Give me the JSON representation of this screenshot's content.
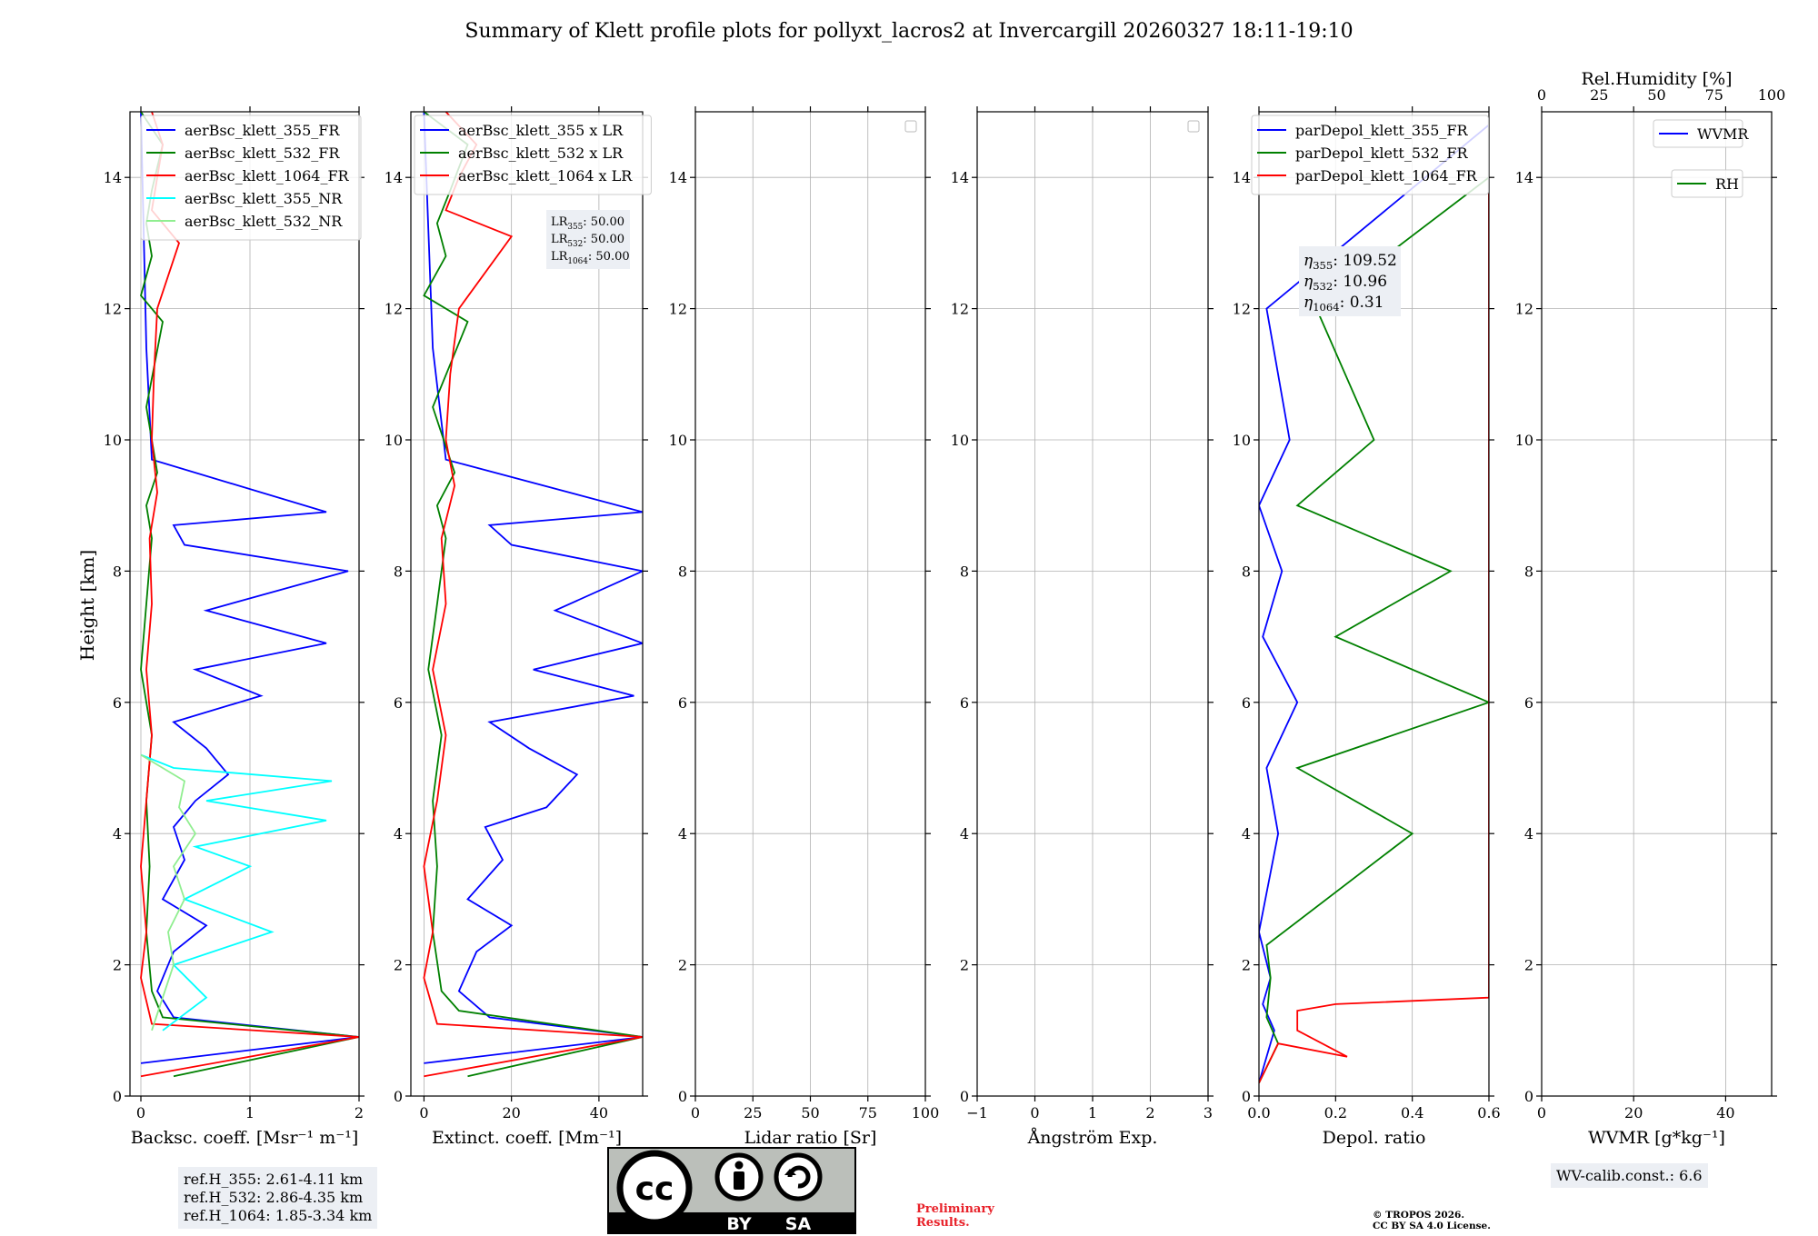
{
  "title": "Summary of Klett profile plots for pollyxt_lacros2 at Invercargill 20260327 18:11-19:10",
  "ylabel": "Height [km]",
  "colors": {
    "c355": "#0000ff",
    "c532": "#008000",
    "c1064": "#ff0000",
    "c355nr": "#00ffff",
    "c532nr": "#90ee90"
  },
  "chart_data": [
    {
      "type": "line",
      "panel": "backscatter",
      "xlabel": "Backsc. coeff. [Msr⁻¹ m⁻¹]",
      "xlim": [
        -0.1,
        2
      ],
      "ylim": [
        0,
        15
      ],
      "xticks": [
        "0",
        "1",
        "2"
      ],
      "yticks": [
        "0",
        "2",
        "4",
        "6",
        "8",
        "10",
        "12",
        "14"
      ],
      "legend": [
        "aerBsc_klett_355_FR",
        "aerBsc_klett_532_FR",
        "aerBsc_klett_1064_FR",
        "aerBsc_klett_355_NR",
        "aerBsc_klett_532_NR"
      ],
      "series": [
        {
          "name": "aerBsc_klett_355_FR",
          "x": [
            0.0,
            2.0,
            0.3,
            0.15,
            0.3,
            0.6,
            0.2,
            0.4,
            0.3,
            0.5,
            0.8,
            0.6,
            0.3,
            1.1,
            0.5,
            1.7,
            0.6,
            1.9,
            0.4,
            0.3,
            1.7,
            0.1,
            0.05,
            0.0
          ],
          "y": [
            0.5,
            0.9,
            1.2,
            1.6,
            2.2,
            2.6,
            3.0,
            3.6,
            4.1,
            4.5,
            4.9,
            5.3,
            5.7,
            6.1,
            6.5,
            6.9,
            7.4,
            8.0,
            8.4,
            8.7,
            8.9,
            9.7,
            11.4,
            15.0
          ]
        },
        {
          "name": "aerBsc_klett_532_FR",
          "x": [
            0.3,
            2.0,
            0.2,
            0.1,
            0.05,
            0.08,
            0.05,
            0.1,
            0.0,
            0.05,
            0.1,
            0.05,
            0.15,
            0.05,
            0.2,
            0.0,
            0.1,
            0.05,
            0.1,
            0.2,
            0.0
          ],
          "y": [
            0.3,
            0.9,
            1.2,
            1.6,
            2.5,
            3.5,
            4.5,
            5.5,
            6.5,
            7.5,
            8.5,
            9.0,
            9.5,
            10.5,
            11.8,
            12.2,
            12.8,
            13.3,
            13.8,
            14.5,
            15.0
          ]
        },
        {
          "name": "aerBsc_klett_1064_FR",
          "x": [
            0.0,
            2.0,
            0.1,
            0.0,
            0.05,
            0.0,
            0.05,
            0.1,
            0.05,
            0.1,
            0.08,
            0.15,
            0.1,
            0.12,
            0.15,
            0.35,
            0.1,
            0.15,
            0.2,
            0.1
          ],
          "y": [
            0.3,
            0.9,
            1.1,
            1.8,
            2.5,
            3.5,
            4.5,
            5.5,
            6.5,
            7.5,
            8.5,
            9.2,
            10.0,
            11.0,
            12.0,
            13.0,
            13.5,
            14.0,
            14.5,
            15.0
          ]
        },
        {
          "name": "aerBsc_klett_355_NR",
          "x": [
            0.2,
            0.6,
            0.3,
            1.2,
            0.4,
            1.0,
            0.5,
            1.7,
            0.6,
            1.75,
            0.3,
            0.0
          ],
          "y": [
            1.0,
            1.5,
            2.0,
            2.5,
            3.0,
            3.5,
            3.8,
            4.2,
            4.5,
            4.8,
            5.0,
            5.2
          ]
        },
        {
          "name": "aerBsc_klett_532_NR",
          "x": [
            0.1,
            0.2,
            0.3,
            0.25,
            0.4,
            0.3,
            0.5,
            0.35,
            0.4,
            0.2,
            0.0
          ],
          "y": [
            1.0,
            1.5,
            2.0,
            2.5,
            3.0,
            3.5,
            4.0,
            4.4,
            4.8,
            5.0,
            5.2
          ]
        }
      ],
      "ref_text": [
        "ref.H_355: 2.61-4.11 km",
        "ref.H_532: 2.86-4.35 km",
        "ref.H_1064: 1.85-3.34 km"
      ]
    },
    {
      "type": "line",
      "panel": "extinction",
      "xlabel": "Extinct. coeff. [Mm⁻¹]",
      "xlim": [
        -3,
        50
      ],
      "ylim": [
        0,
        15
      ],
      "xticks": [
        "0",
        "20",
        "40"
      ],
      "yticks": [
        "0",
        "2",
        "4",
        "6",
        "8",
        "10",
        "12",
        "14"
      ],
      "legend": [
        "aerBsc_klett_355 x LR",
        "aerBsc_klett_532 x LR",
        "aerBsc_klett_1064 x LR"
      ],
      "lr_text": [
        {
          "ch": "355",
          "val": ": 50.00"
        },
        {
          "ch": "532",
          "val": ": 50.00"
        },
        {
          "ch": "1064",
          "val": ": 50.00"
        }
      ],
      "series": [
        {
          "name": "aerBsc_klett_355 x LR",
          "x": [
            0,
            50,
            15,
            8,
            12,
            20,
            10,
            18,
            14,
            28,
            35,
            24,
            15,
            48,
            25,
            50,
            30,
            50,
            20,
            15,
            50,
            5,
            2,
            0
          ],
          "y": [
            0.5,
            0.9,
            1.2,
            1.6,
            2.2,
            2.6,
            3.0,
            3.6,
            4.1,
            4.4,
            4.9,
            5.3,
            5.7,
            6.1,
            6.5,
            6.9,
            7.4,
            8.0,
            8.4,
            8.7,
            8.9,
            9.7,
            11.4,
            15.0
          ]
        },
        {
          "name": "aerBsc_klett_532 x LR",
          "x": [
            10,
            50,
            8,
            4,
            2,
            3,
            2,
            4,
            1,
            3,
            5,
            3,
            7,
            2,
            10,
            0,
            5,
            3,
            6,
            10,
            0
          ],
          "y": [
            0.3,
            0.9,
            1.3,
            1.6,
            2.5,
            3.5,
            4.5,
            5.5,
            6.5,
            7.5,
            8.5,
            9.0,
            9.5,
            10.5,
            11.8,
            12.2,
            12.8,
            13.3,
            13.8,
            14.5,
            15.0
          ]
        },
        {
          "name": "aerBsc_klett_1064 x LR",
          "x": [
            0,
            50,
            3,
            0,
            2,
            0,
            3,
            5,
            2,
            5,
            4,
            7,
            5,
            6,
            8,
            20,
            5,
            8,
            12,
            5
          ],
          "y": [
            0.3,
            0.9,
            1.1,
            1.8,
            2.5,
            3.5,
            4.5,
            5.5,
            6.5,
            7.5,
            8.5,
            9.3,
            10.0,
            11.0,
            12.0,
            13.1,
            13.5,
            14.0,
            14.5,
            15.0
          ]
        }
      ]
    },
    {
      "type": "line",
      "panel": "lidar-ratio",
      "xlabel": "Lidar ratio [Sr]",
      "xlim": [
        0,
        100
      ],
      "ylim": [
        0,
        15
      ],
      "xticks": [
        "0",
        "25",
        "50",
        "75",
        "100"
      ],
      "yticks": [
        "0",
        "2",
        "4",
        "6",
        "8",
        "10",
        "12",
        "14"
      ],
      "series": []
    },
    {
      "type": "line",
      "panel": "angstrom",
      "xlabel": "Ångström Exp.",
      "xlim": [
        -1,
        3
      ],
      "ylim": [
        0,
        15
      ],
      "xticks": [
        "−1",
        "0",
        "1",
        "2",
        "3"
      ],
      "yticks": [
        "0",
        "2",
        "4",
        "6",
        "8",
        "10",
        "12",
        "14"
      ],
      "series": []
    },
    {
      "type": "line",
      "panel": "depolarization",
      "xlabel": "Depol. ratio",
      "xlim": [
        0,
        0.6
      ],
      "ylim": [
        0,
        15
      ],
      "xticks": [
        "0.0",
        "0.2",
        "0.4",
        "0.6"
      ],
      "yticks": [
        "0",
        "2",
        "4",
        "6",
        "8",
        "10",
        "12",
        "14"
      ],
      "legend": [
        "parDepol_klett_355_FR",
        "parDepol_klett_532_FR",
        "parDepol_klett_1064_FR"
      ],
      "eta_text": [
        {
          "ch": "355",
          "val": ": 109.52"
        },
        {
          "ch": "532",
          "val": ": 10.96"
        },
        {
          "ch": "1064",
          "val": ": 0.31"
        }
      ],
      "series": [
        {
          "name": "parDepol_klett_355_FR",
          "x": [
            0.0,
            0.02,
            0.04,
            0.01,
            0.03,
            0.0,
            0.05,
            0.02,
            0.1,
            0.01,
            0.06,
            0.0,
            0.08,
            0.02,
            0.6
          ],
          "y": [
            0.2,
            0.6,
            1.0,
            1.4,
            1.8,
            2.5,
            4.0,
            5.0,
            6.0,
            7.0,
            8.0,
            9.0,
            10.0,
            12.0,
            14.8
          ]
        },
        {
          "name": "parDepol_klett_532_FR",
          "x": [
            0.0,
            0.05,
            0.02,
            0.03,
            0.02,
            0.4,
            0.1,
            0.6,
            0.2,
            0.5,
            0.1,
            0.3,
            0.15,
            0.6
          ],
          "y": [
            0.2,
            0.8,
            1.2,
            1.8,
            2.3,
            4.0,
            5.0,
            6.0,
            7.0,
            8.0,
            9.0,
            10.0,
            12.0,
            14.0
          ]
        },
        {
          "name": "parDepol_klett_1064_FR",
          "x": [
            0.0,
            0.05,
            0.23,
            0.1,
            0.1,
            0.2,
            0.6,
            0.6,
            0.6,
            0.6,
            0.6,
            0.6,
            0.6,
            0.6
          ],
          "y": [
            0.2,
            0.8,
            0.6,
            1.0,
            1.3,
            1.4,
            1.5,
            3.0,
            5.0,
            7.0,
            9.0,
            11.0,
            13.0,
            14.5
          ]
        }
      ]
    },
    {
      "type": "line",
      "panel": "wvmr-rh",
      "xlabel": "WVMR [g*kg⁻¹]",
      "xlabel_top": "Rel.Humidity [%]",
      "xlim": [
        0,
        50
      ],
      "xlim_top": [
        0,
        100
      ],
      "ylim": [
        0,
        15
      ],
      "xticks": [
        "0",
        "20",
        "40"
      ],
      "xticks_top": [
        "0",
        "25",
        "50",
        "75",
        "100"
      ],
      "yticks": [
        "0",
        "2",
        "4",
        "6",
        "8",
        "10",
        "12",
        "14"
      ],
      "legend": [
        "WVMR",
        "RH"
      ],
      "calib_text": "WV-calib.const.: 6.6",
      "series": []
    }
  ],
  "footer": {
    "preliminary": [
      "Preliminary",
      "Results."
    ],
    "copyright": [
      "© TROPOS 2026.",
      "CC BY SA 4.0 License."
    ],
    "cc_labels": {
      "cc": "cc",
      "by": "BY",
      "sa": "SA"
    }
  }
}
